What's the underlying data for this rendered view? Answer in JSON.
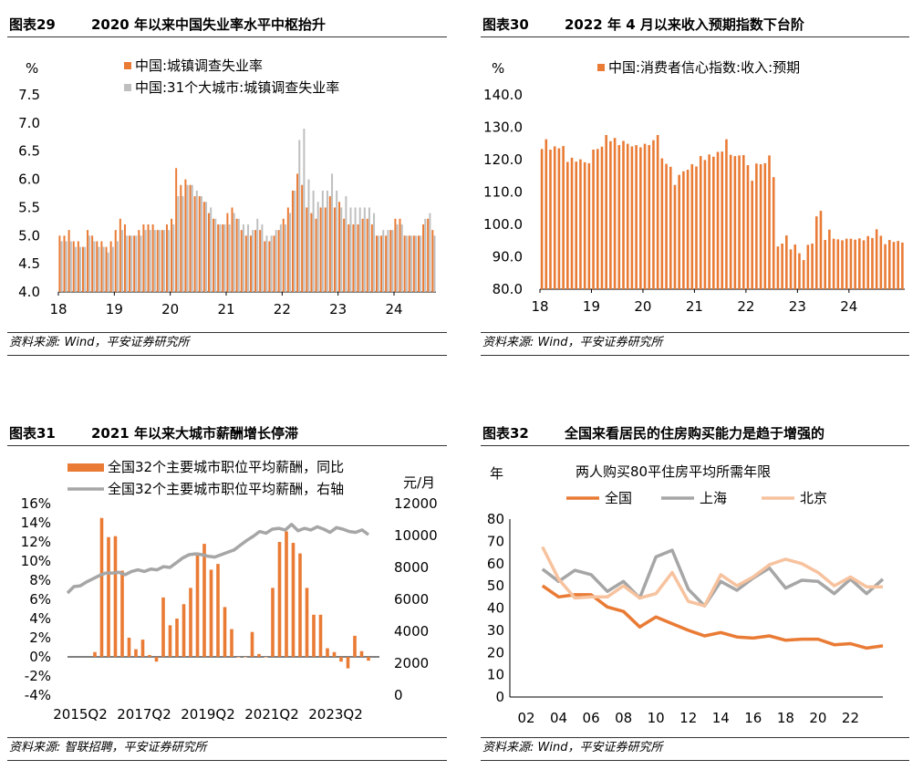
{
  "panels": [
    {
      "number": "图表29",
      "title": "2020 年以来中国失业率水平中枢抬升",
      "source": "资料来源: Wind，平安证券研究所"
    },
    {
      "number": "图表30",
      "title": "2022 年 4 月以来收入预期指数下台阶",
      "source": "资料来源: Wind，平安证券研究所"
    },
    {
      "number": "图表31",
      "title": "2021 年以来大城市薪酬增长停滞",
      "source": "资料来源: 智联招聘，平安证券研究所"
    },
    {
      "number": "图表32",
      "title": "全国来看居民的住房购买能力是趋于增强的",
      "source": "资料来源: Wind，平安证券研究所"
    }
  ],
  "chart_data": [
    {
      "type": "bar",
      "ylabel": "%",
      "ylim": [
        4.0,
        7.5
      ],
      "yticks": [
        "4.0",
        "4.5",
        "5.0",
        "5.5",
        "6.0",
        "6.5",
        "7.0",
        "7.5"
      ],
      "xticks": [
        "18",
        "19",
        "20",
        "21",
        "22",
        "23",
        "24"
      ],
      "legend_position": "top",
      "colors": {
        "urban": "#E97B35",
        "city31": "#BFBFBF"
      },
      "series": [
        {
          "name": "中国:城镇调查失业率",
          "values": [
            5.0,
            5.0,
            5.1,
            4.9,
            4.9,
            4.8,
            5.1,
            5.0,
            4.9,
            4.9,
            4.8,
            4.9,
            5.1,
            5.3,
            5.2,
            5.0,
            5.0,
            5.1,
            5.2,
            5.2,
            5.2,
            5.1,
            5.1,
            5.2,
            5.3,
            6.2,
            5.9,
            6.0,
            5.9,
            5.7,
            5.7,
            5.6,
            5.4,
            5.3,
            5.2,
            5.2,
            5.4,
            5.5,
            5.3,
            5.1,
            5.0,
            5.0,
            5.1,
            5.1,
            4.9,
            4.9,
            5.0,
            5.1,
            5.3,
            5.5,
            5.8,
            6.1,
            5.9,
            5.5,
            5.4,
            5.3,
            5.5,
            5.5,
            5.7,
            5.5,
            5.6,
            5.3,
            5.2,
            5.2,
            5.2,
            5.3,
            5.3,
            5.2,
            5.0,
            5.0,
            5.0,
            5.1,
            5.3,
            5.3,
            5.0,
            5.0,
            5.0,
            5.0,
            5.2,
            5.3,
            5.1
          ]
        },
        {
          "name": "中国:31个大城市:城镇调查失业率",
          "values": [
            4.9,
            4.9,
            4.9,
            4.8,
            4.8,
            4.8,
            5.0,
            4.9,
            4.8,
            4.8,
            4.7,
            4.8,
            4.9,
            5.1,
            5.0,
            5.0,
            5.0,
            5.0,
            5.1,
            5.1,
            5.1,
            5.1,
            5.1,
            5.1,
            5.2,
            5.7,
            5.7,
            5.9,
            5.9,
            5.8,
            5.7,
            5.6,
            5.5,
            5.3,
            5.2,
            5.2,
            5.2,
            5.4,
            5.3,
            5.2,
            5.2,
            5.1,
            5.3,
            5.2,
            5.0,
            5.0,
            5.1,
            5.2,
            5.2,
            5.4,
            5.8,
            6.7,
            6.9,
            6.0,
            5.8,
            5.6,
            5.8,
            5.8,
            6.1,
            5.8,
            5.5,
            5.7,
            5.5,
            5.5,
            5.5,
            5.5,
            5.5,
            5.4,
            5.0,
            5.1,
            5.1,
            5.1,
            5.2,
            5.2,
            5.0,
            5.0,
            5.0,
            5.0,
            5.3,
            5.4,
            5.0
          ]
        }
      ]
    },
    {
      "type": "bar",
      "ylabel": "%",
      "ylim": [
        80.0,
        140.0
      ],
      "yticks": [
        "80.0",
        "90.0",
        "100.0",
        "110.0",
        "120.0",
        "130.0",
        "140.0"
      ],
      "xticks": [
        "18",
        "19",
        "20",
        "21",
        "22",
        "23",
        "24"
      ],
      "legend_position": "top",
      "colors": {
        "income": "#E97B35"
      },
      "series": [
        {
          "name": "中国:消费者信心指数:收入:预期",
          "values": [
            123.3,
            126.3,
            123.1,
            124.1,
            123.5,
            124.2,
            119.3,
            120.6,
            119.4,
            120.1,
            119.2,
            118.9,
            123.1,
            123.3,
            124.0,
            127.6,
            125.7,
            126.7,
            124.5,
            125.8,
            124.9,
            124.1,
            124.5,
            123.8,
            124.9,
            124.5,
            126.0,
            127.6,
            120.4,
            118.7,
            117.8,
            112.2,
            115.3,
            116.4,
            116.9,
            118.6,
            117.9,
            121.1,
            119.9,
            121.6,
            120.9,
            122.4,
            122.5,
            126.3,
            121.5,
            121.1,
            121.3,
            121.4,
            118.3,
            113.5,
            118.8,
            118.6,
            118.9,
            121.3,
            114.6,
            93.2,
            94.1,
            96.6,
            92.3,
            93.8,
            91.1,
            89.0,
            93.7,
            94.1,
            102.5,
            104.2,
            95.2,
            98.4,
            95.6,
            95.4,
            95.1,
            95.6,
            95.6,
            95.3,
            95.7,
            95.1,
            96.4,
            95.8,
            98.5,
            96.5,
            93.9,
            95.2,
            94.6,
            94.9,
            94.4
          ]
        }
      ]
    },
    {
      "type": "bar",
      "ylim": [
        -0.04,
        0.16
      ],
      "yticks": [
        "-4%",
        "-2%",
        "0%",
        "2%",
        "4%",
        "6%",
        "8%",
        "10%",
        "12%",
        "14%",
        "16%"
      ],
      "y2label": "元/月",
      "y2lim": [
        0,
        12000
      ],
      "y2ticks": [
        "0",
        "2000",
        "4000",
        "6000",
        "8000",
        "10000",
        "12000"
      ],
      "xticks": [
        "2015Q2",
        "2017Q2",
        "2019Q2",
        "2021Q2",
        "2023Q2"
      ],
      "legend_position": "top",
      "colors": {
        "yoy": "#E97B35",
        "avg": "#A6A6A6"
      },
      "series": [
        {
          "name": "全国32个主要城市职位平均薪酬，同比",
          "chart": "bar",
          "axis": "left",
          "values": [
            0.005,
            0.145,
            0.125,
            0.126,
            0.09,
            0.02,
            0.008,
            0.018,
            0.002,
            -0.005,
            0.062,
            0.033,
            0.04,
            0.055,
            0.072,
            0.109,
            0.118,
            0.091,
            0.097,
            0.052,
            0.029,
            0.0,
            0.0,
            0.026,
            0.003,
            0.0,
            0.072,
            0.12,
            0.131,
            0.119,
            0.108,
            0.072,
            0.044,
            0.044,
            0.009,
            0.005,
            -0.005,
            -0.012,
            0.022,
            0.006,
            -0.004
          ]
        },
        {
          "name": "全国32个主要城市职位平均薪酬，右轴",
          "chart": "line",
          "axis": "right",
          "values": [
            6400,
            6800,
            6850,
            7100,
            7300,
            7500,
            7650,
            7650,
            7700,
            7550,
            7750,
            7850,
            7750,
            7900,
            7850,
            8050,
            8000,
            8300,
            8600,
            8800,
            8850,
            8800,
            8700,
            8650,
            8800,
            8950,
            9100,
            9400,
            9700,
            9950,
            10250,
            10150,
            10400,
            10450,
            10350,
            10700,
            10300,
            10450,
            10350,
            10550,
            10400,
            10200,
            10500,
            10400,
            10250,
            10200,
            10350,
            10050
          ]
        }
      ]
    },
    {
      "type": "line",
      "title": "两人购买80平住房平均所需年限",
      "ylabel": "年",
      "ylim": [
        0,
        80
      ],
      "yticks": [
        "0",
        "10",
        "20",
        "30",
        "40",
        "50",
        "60",
        "70",
        "80"
      ],
      "x": [
        2003,
        2004,
        2005,
        2006,
        2007,
        2008,
        2009,
        2010,
        2011,
        2012,
        2013,
        2014,
        2015,
        2016,
        2017,
        2018,
        2019,
        2020,
        2021,
        2022,
        2023,
        2024
      ],
      "xticks": [
        "02",
        "04",
        "06",
        "08",
        "10",
        "12",
        "14",
        "16",
        "18",
        "20",
        "22"
      ],
      "xlim": [
        2002,
        2024
      ],
      "legend_position": "top",
      "colors": {
        "national": "#E97B35",
        "shanghai": "#A6A6A6",
        "beijing": "#F7C29E"
      },
      "series": [
        {
          "name": "全国",
          "values": [
            50,
            45,
            46,
            46,
            40.5,
            38.5,
            31.5,
            36,
            33,
            30,
            27.5,
            29,
            27,
            26.5,
            27.5,
            25.5,
            26,
            26,
            23.5,
            24,
            22,
            23
          ]
        },
        {
          "name": "上海",
          "values": [
            57.5,
            52,
            57,
            55,
            47.5,
            52,
            44.5,
            63,
            66,
            48.5,
            41,
            52,
            48,
            53.5,
            58,
            49,
            52.5,
            52,
            46.5,
            53,
            46.5,
            53
          ]
        },
        {
          "name": "北京",
          "values": [
            67.5,
            53,
            44.5,
            45,
            45,
            50,
            44.5,
            46.5,
            56,
            43,
            41,
            55,
            50,
            54,
            59.5,
            62,
            60,
            56,
            50,
            54,
            49.5,
            49.5
          ]
        }
      ]
    }
  ]
}
